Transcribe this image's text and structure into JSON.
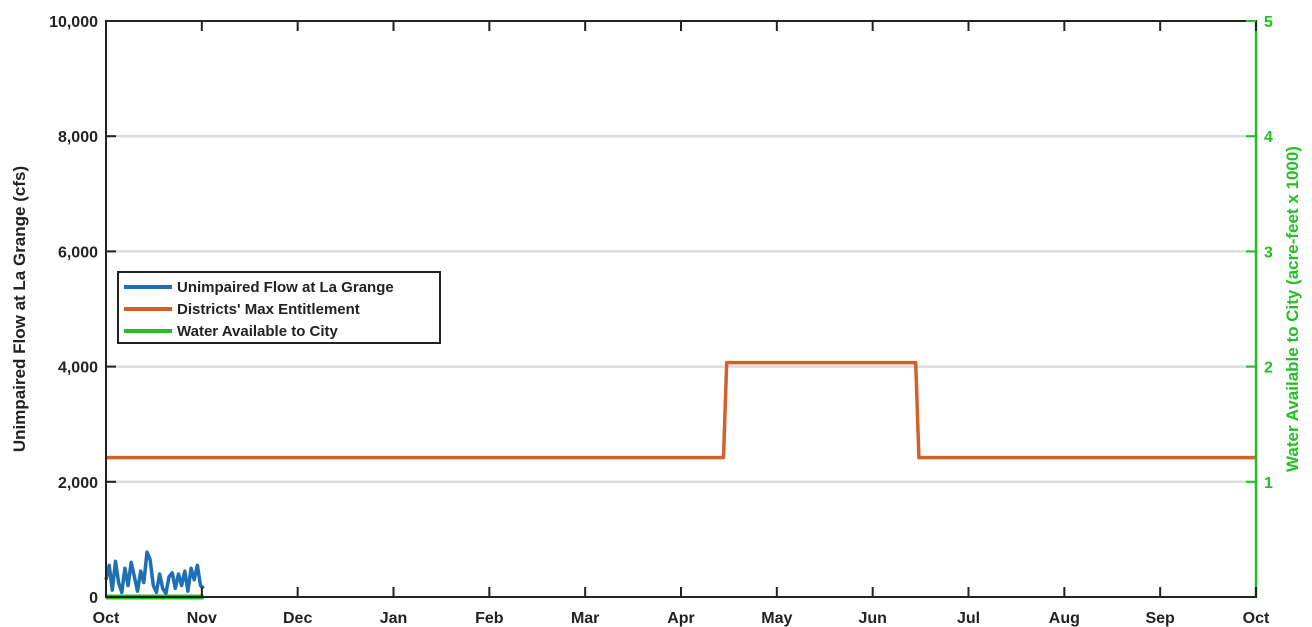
{
  "chart_data": {
    "type": "line",
    "title": "",
    "ylabel": "Unimpaired Flow at La Grange (cfs)",
    "ylabel_right": "Water Available to City (acre-feet x 1000)",
    "x_tick_labels": [
      "Oct",
      "Nov",
      "Dec",
      "Jan",
      "Feb",
      "Mar",
      "Apr",
      "May",
      "Jun",
      "Jul",
      "Aug",
      "Sep",
      "Oct"
    ],
    "xlim": [
      0,
      365
    ],
    "ylim": [
      0,
      10000
    ],
    "y_ticks": [
      0,
      2000,
      4000,
      6000,
      8000,
      10000
    ],
    "y_tick_labels": [
      "0",
      "2,000",
      "4,000",
      "6,000",
      "8,000",
      "10,000"
    ],
    "ylim_right": [
      0,
      5
    ],
    "y_right_ticks": [
      1,
      2,
      3,
      4,
      5
    ],
    "y_right_tick_labels": [
      "1",
      "2",
      "3",
      "4",
      "5"
    ],
    "grid": "horizontal",
    "legend_position": "left",
    "series": [
      {
        "name": "Unimpaired Flow at La Grange",
        "color": "#1f6fb4",
        "axis": "left",
        "x": [
          0,
          1,
          2,
          3,
          4,
          5,
          6,
          7,
          8,
          9,
          10,
          11,
          12,
          13,
          14,
          15,
          16,
          17,
          18,
          19,
          20,
          21,
          22,
          23,
          24,
          25,
          26,
          27,
          28,
          29,
          30,
          31
        ],
        "y": [
          300,
          550,
          120,
          620,
          250,
          80,
          500,
          200,
          600,
          350,
          100,
          450,
          250,
          780,
          650,
          200,
          80,
          400,
          150,
          60,
          350,
          420,
          150,
          400,
          200,
          450,
          100,
          500,
          300,
          550,
          200,
          150
        ]
      },
      {
        "name": "Districts' Max Entitlement",
        "color": "#d2602a",
        "axis": "left",
        "x": [
          0,
          196,
          197,
          257,
          258,
          365
        ],
        "y": [
          2420,
          2420,
          4070,
          4070,
          2420,
          2420
        ]
      },
      {
        "name": "Water Available to City",
        "color": "#22c022",
        "axis": "right",
        "x": [
          0,
          31
        ],
        "y": [
          0,
          0
        ]
      }
    ]
  }
}
